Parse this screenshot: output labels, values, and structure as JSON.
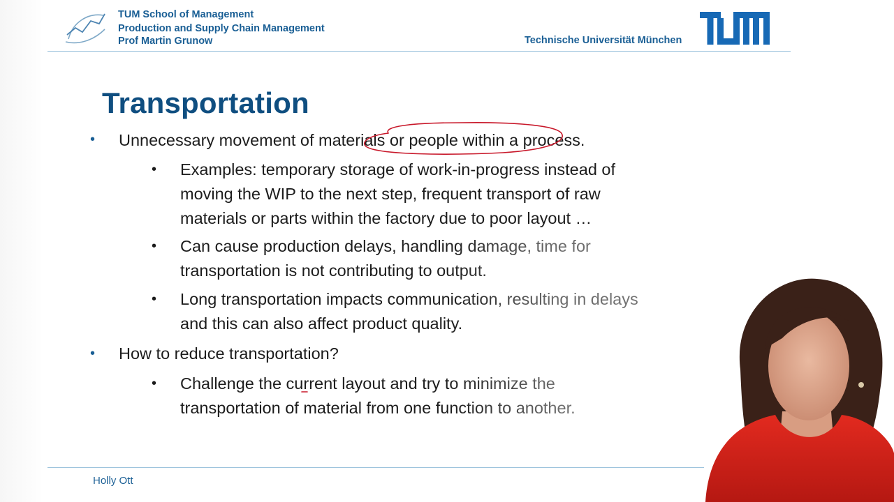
{
  "header": {
    "school": "TUM School of Management",
    "chair": "Production and Supply Chain Management",
    "professor": "Prof Martin Grunow",
    "university": "Technische Universität München",
    "logo_text": "TUM"
  },
  "slide": {
    "title": "Transportation",
    "bullets": [
      {
        "text": "Unnecessary movement of materials or people within a process.",
        "sub": [
          [
            "Examples: temporary storage of work-in-progress instead of",
            "moving the WIP to the next step, frequent transport of raw",
            "materials or parts within the factory due to poor layout …"
          ],
          [
            "Can cause production delays, handling damage, time for",
            "transportation is not contributing to output."
          ],
          [
            "Long transportation impacts communication, resulting in delays",
            "and this can also affect product quality."
          ]
        ]
      },
      {
        "text": "How to reduce transportation?",
        "sub": [
          [
            "Challenge the current layout and try to minimize the",
            "transportation of material from one function to another."
          ]
        ]
      }
    ]
  },
  "footer": {
    "author": "Holly Ott"
  },
  "colors": {
    "tum_blue": "#1a5f95",
    "title_blue": "#0f4e80",
    "ink_red": "#c8182a",
    "presenter_red": "#d8251d"
  },
  "icons": {
    "chair_logo": "trend-chart-logo-icon",
    "tum_logo": "tum-logo-icon"
  }
}
